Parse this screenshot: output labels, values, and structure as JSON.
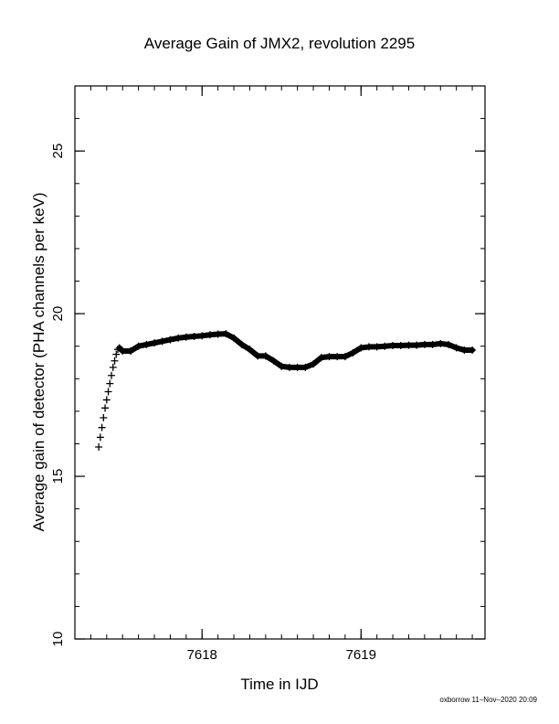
{
  "chart_data": {
    "type": "scatter",
    "title": "Average Gain of JMX2, revolution 2295",
    "xlabel": "Time in IJD",
    "ylabel": "Average gain of detector (PHA channels per keV)",
    "xlim": [
      7617.2,
      7619.78
    ],
    "ylim": [
      10,
      27
    ],
    "xticks": [
      7618,
      7619
    ],
    "yticks": [
      10,
      15,
      20,
      25
    ],
    "x_minor_step": 0.1,
    "y_minor_step": 1,
    "marker": "plus",
    "series_color": "#000000",
    "series": [
      {
        "x": [
          7617.35,
          7617.36,
          7617.37,
          7617.38,
          7617.39,
          7617.4,
          7617.41,
          7617.42,
          7617.43,
          7617.44,
          7617.45,
          7617.46,
          7617.47,
          7617.48,
          7617.5,
          7617.55,
          7617.6,
          7617.65,
          7617.7,
          7617.75,
          7617.8,
          7617.85,
          7617.9,
          7617.95,
          7618.0,
          7618.05,
          7618.1,
          7618.15,
          7618.2,
          7618.25,
          7618.3,
          7618.35,
          7618.4,
          7618.45,
          7618.5,
          7618.55,
          7618.6,
          7618.65,
          7618.7,
          7618.75,
          7618.8,
          7618.85,
          7618.9,
          7618.95,
          7619.0,
          7619.05,
          7619.1,
          7619.15,
          7619.2,
          7619.25,
          7619.3,
          7619.35,
          7619.4,
          7619.45,
          7619.5,
          7619.55,
          7619.6,
          7619.65,
          7619.7
        ],
        "y": [
          15.9,
          16.2,
          16.5,
          16.8,
          17.1,
          17.35,
          17.6,
          17.85,
          18.1,
          18.35,
          18.55,
          18.75,
          18.9,
          18.95,
          18.85,
          18.85,
          19.0,
          19.05,
          19.1,
          19.15,
          19.2,
          19.25,
          19.28,
          19.3,
          19.32,
          19.35,
          19.37,
          19.38,
          19.25,
          19.05,
          18.9,
          18.7,
          18.7,
          18.55,
          18.38,
          18.35,
          18.35,
          18.35,
          18.45,
          18.65,
          18.68,
          18.68,
          18.68,
          18.8,
          18.95,
          18.98,
          18.98,
          19.0,
          19.02,
          19.02,
          19.03,
          19.03,
          19.05,
          19.05,
          19.08,
          19.05,
          18.95,
          18.88,
          18.88
        ]
      }
    ]
  },
  "footer": "oxborrow 11–Nov–2020 20:09"
}
